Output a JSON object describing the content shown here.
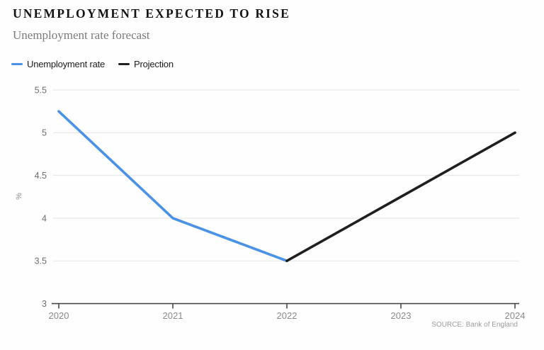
{
  "header": {
    "title": "UNEMPLOYMENT EXPECTED TO RISE",
    "subtitle": "Unemployment rate forecast"
  },
  "legend": [
    {
      "label": "Unemployment rate",
      "color": "#4a91e8"
    },
    {
      "label": "Projection",
      "color": "#1f1f1f"
    }
  ],
  "source": "SOURCE: Bank of England",
  "chart_data": {
    "type": "line",
    "title": "Unemployment expected to rise",
    "subtitle": "Unemployment rate forecast",
    "xlabel": "",
    "ylabel": "%",
    "xlim": [
      2020,
      2024
    ],
    "ylim": [
      3,
      5.5
    ],
    "xticks": [
      2020,
      2021,
      2022,
      2023,
      2024
    ],
    "yticks": [
      3,
      3.5,
      4,
      4.5,
      5,
      5.5
    ],
    "grid": true,
    "legend_position": "top-left",
    "source": "SOURCE: Bank of England",
    "series": [
      {
        "name": "Unemployment rate",
        "color": "#4a91e8",
        "points": [
          [
            2020,
            5.25
          ],
          [
            2021,
            4.0
          ],
          [
            2022,
            3.5
          ]
        ]
      },
      {
        "name": "Projection",
        "color": "#1f1f1f",
        "points": [
          [
            2022,
            3.5
          ],
          [
            2023,
            4.25
          ],
          [
            2024,
            5.0
          ]
        ]
      }
    ]
  }
}
